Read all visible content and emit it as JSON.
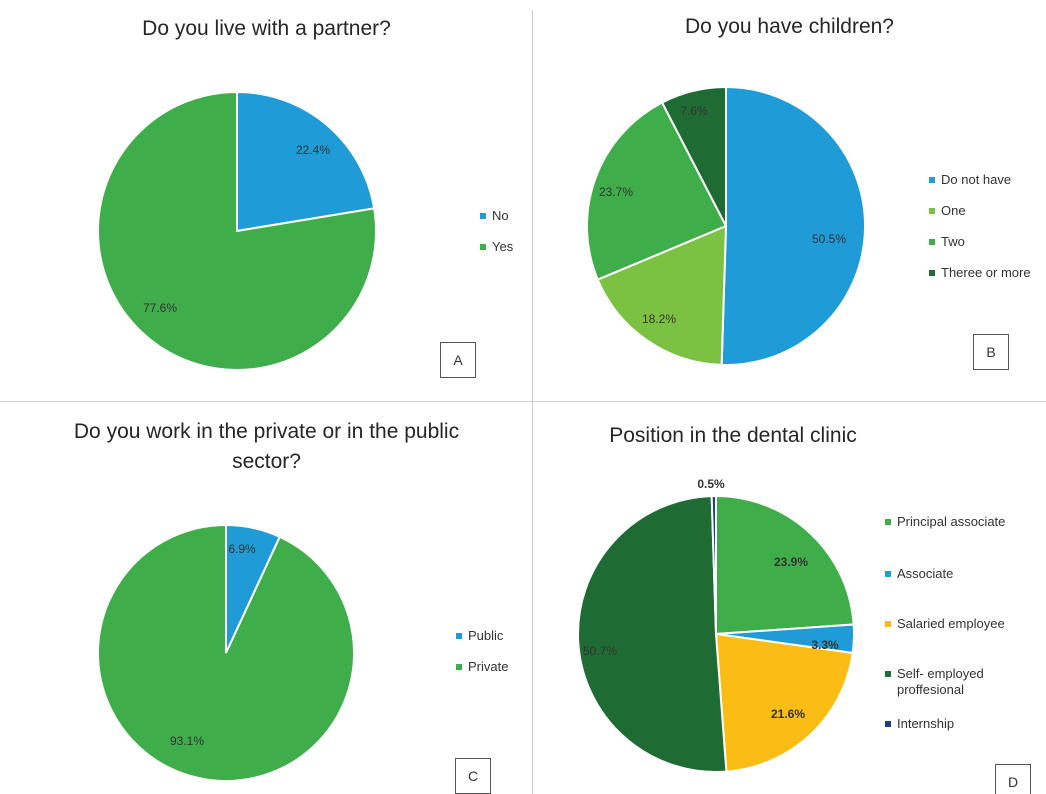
{
  "chart_data": [
    {
      "type": "pie",
      "title": "Do you live with a partner?",
      "panel_letter": "A",
      "slices": [
        {
          "name": "No",
          "value": 22.4,
          "label": "22.4%",
          "color": "#1f9bd7"
        },
        {
          "name": "Yes",
          "value": 77.6,
          "label": "77.6%",
          "color": "#3fae4a"
        }
      ],
      "legend_position": "right"
    },
    {
      "type": "pie",
      "title": "Do you have children?",
      "panel_letter": "B",
      "slices": [
        {
          "name": "Do not have",
          "value": 50.5,
          "label": "50.5%",
          "color": "#1f9bd7"
        },
        {
          "name": "One",
          "value": 18.2,
          "label": "18.2%",
          "color": "#7cc242"
        },
        {
          "name": "Two",
          "value": 23.7,
          "label": "23.7%",
          "color": "#3fae4a"
        },
        {
          "name": "Theree or more",
          "value": 7.6,
          "label": "7.6%",
          "color": "#1e6b34"
        }
      ],
      "legend_position": "right"
    },
    {
      "type": "pie",
      "title": "Do you work in the private or in the public sector?",
      "panel_letter": "C",
      "slices": [
        {
          "name": "Public",
          "value": 6.9,
          "label": "6.9%",
          "color": "#1f9bd7"
        },
        {
          "name": "Private",
          "value": 93.1,
          "label": "93.1%",
          "color": "#3fae4a"
        }
      ],
      "legend_position": "right"
    },
    {
      "type": "pie",
      "title": "Position in the dental clinic",
      "panel_letter": "D",
      "slices": [
        {
          "name": "Principal associate",
          "value": 23.9,
          "label": "23.9%",
          "color": "#3fae4a"
        },
        {
          "name": "Associate",
          "value": 3.3,
          "label": "3.3%",
          "color": "#1f9bd7"
        },
        {
          "name": "Salaried employee",
          "value": 21.6,
          "label": "21.6%",
          "color": "#fbbc13"
        },
        {
          "name": "Self- employed proffesional",
          "value": 50.7,
          "label": "50.7%",
          "color": "#1e6b34"
        },
        {
          "name": "Internship",
          "value": 0.5,
          "label": "0.5%",
          "color": "#1a3f7a"
        }
      ],
      "legend_position": "right"
    }
  ]
}
